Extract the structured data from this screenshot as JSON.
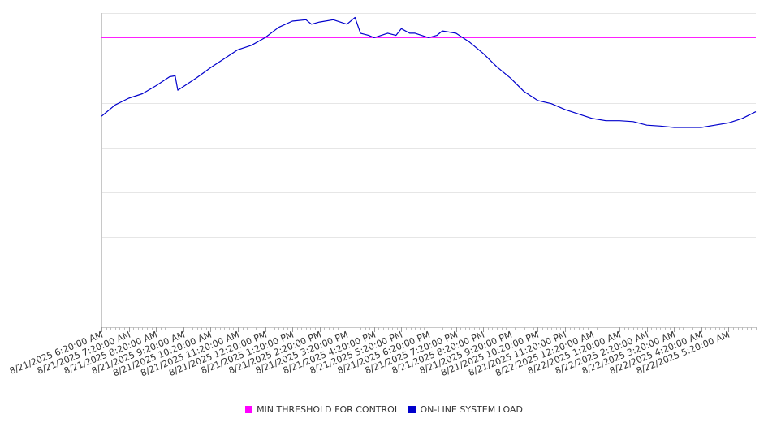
{
  "chart_data": {
    "type": "line",
    "title": "",
    "xlabel": "",
    "ylabel": "",
    "x_tick_labels": [
      "8/21/2025 6:20:00 AM",
      "8/21/2025 7:20:00 AM",
      "8/21/2025 8:20:00 AM",
      "8/21/2025 9:20:00 AM",
      "8/21/2025 10:20:00 AM",
      "8/21/2025 11:20:00 AM",
      "8/21/2025 12:20:00 PM",
      "8/21/2025 1:20:00 PM",
      "8/21/2025 2:20:00 PM",
      "8/21/2025 3:20:00 PM",
      "8/21/2025 4:20:00 PM",
      "8/21/2025 5:20:00 PM",
      "8/21/2025 6:20:00 PM",
      "8/21/2025 7:20:00 PM",
      "8/21/2025 8:20:00 PM",
      "8/21/2025 9:20:00 PM",
      "8/21/2025 10:20:00 PM",
      "8/21/2025 11:20:00 PM",
      "8/22/2025 12:20:00 AM",
      "8/22/2025 1:20:00 AM",
      "8/22/2025 2:20:00 AM",
      "8/22/2025 3:20:00 AM",
      "8/22/2025 4:20:00 AM",
      "8/22/2025 5:20:00 AM"
    ],
    "x_range_hours": [
      0,
      24
    ],
    "ylim": [
      0,
      7
    ],
    "y_tick_labels_shown": false,
    "grid": "horizontal",
    "legend_position": "bottom-center",
    "series": [
      {
        "name": "MIN THRESHOLD FOR CONTROL",
        "color": "#ff00ff",
        "x": [
          0,
          24
        ],
        "y": [
          6.45,
          6.45
        ]
      },
      {
        "name": "ON-LINE SYSTEM LOAD",
        "color": "#0000cc",
        "x": [
          0,
          0.5,
          1,
          1.5,
          2,
          2.5,
          2.7,
          2.8,
          3,
          3.5,
          4,
          4.5,
          5,
          5.5,
          6,
          6.5,
          7,
          7.5,
          7.7,
          8,
          8.5,
          9,
          9.3,
          9.5,
          9.8,
          10,
          10.5,
          10.8,
          11,
          11.3,
          11.5,
          12,
          12.3,
          12.5,
          13,
          13.5,
          14,
          14.5,
          15,
          15.5,
          16,
          16.5,
          17,
          17.5,
          18,
          18.5,
          19,
          19.5,
          20,
          20.5,
          21,
          21.5,
          22,
          22.5,
          23,
          23.5,
          24
        ],
        "y": [
          4.7,
          4.95,
          5.1,
          5.2,
          5.38,
          5.58,
          5.6,
          5.28,
          5.36,
          5.56,
          5.78,
          5.98,
          6.18,
          6.28,
          6.45,
          6.68,
          6.82,
          6.85,
          6.75,
          6.8,
          6.85,
          6.75,
          6.9,
          6.55,
          6.5,
          6.45,
          6.55,
          6.5,
          6.65,
          6.55,
          6.55,
          6.45,
          6.5,
          6.6,
          6.55,
          6.35,
          6.1,
          5.8,
          5.55,
          5.25,
          5.05,
          4.98,
          4.85,
          4.75,
          4.65,
          4.6,
          4.6,
          4.58,
          4.5,
          4.48,
          4.45,
          4.45,
          4.45,
          4.5,
          4.55,
          4.65,
          4.8
        ]
      }
    ]
  },
  "legend": {
    "items": [
      {
        "label": "MIN THRESHOLD FOR CONTROL",
        "color": "#ff00ff"
      },
      {
        "label": "ON-LINE SYSTEM LOAD",
        "color": "#0000cc"
      }
    ]
  }
}
